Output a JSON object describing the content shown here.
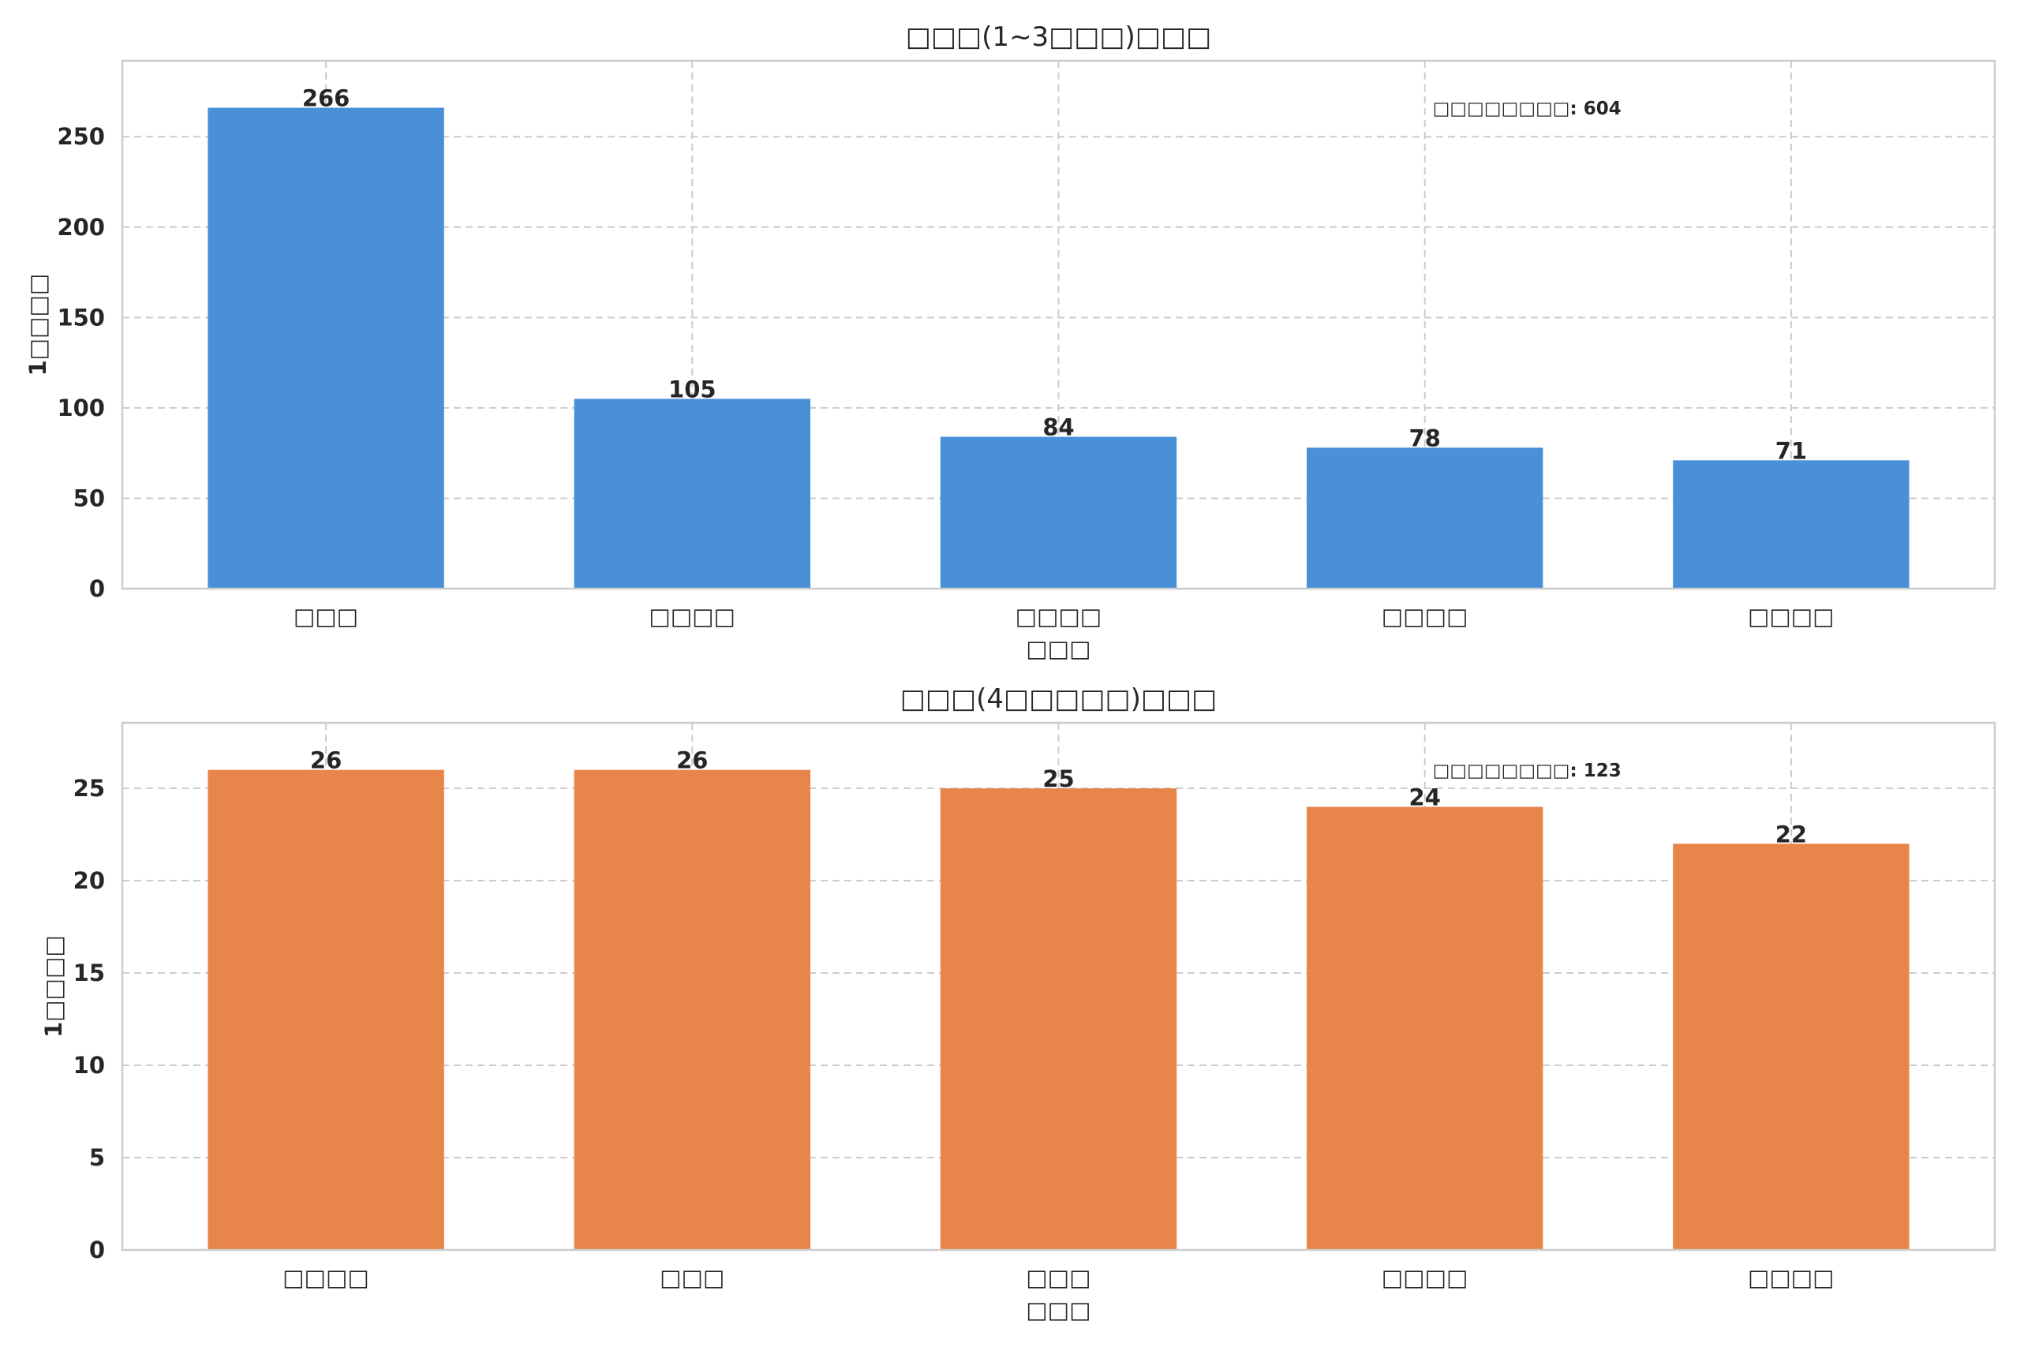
{
  "chart_data": [
    {
      "type": "bar",
      "title": "□□□(1~3□□□)□□□",
      "xlabel": "□□□",
      "ylabel": "1□□□□",
      "categories": [
        "□□□",
        "□□□□",
        "□□□□",
        "□□□□",
        "□□□□"
      ],
      "values": [
        266,
        105,
        84,
        78,
        71
      ],
      "ylim": [
        0,
        292
      ],
      "yticks": [
        0,
        50,
        100,
        150,
        200,
        250
      ],
      "color": "#4a90d9",
      "annotation": "□□□□□□□□: 604",
      "grid": true
    },
    {
      "type": "bar",
      "title": "□□□(4□□□□□)□□□",
      "xlabel": "□□□",
      "ylabel": "1□□□□",
      "categories": [
        "□□□□",
        "□□□",
        "□□□",
        "□□□□",
        "□□□□"
      ],
      "values": [
        26,
        26,
        25,
        24,
        22
      ],
      "ylim": [
        0,
        28.55
      ],
      "yticks": [
        0,
        5,
        10,
        15,
        20,
        25
      ],
      "color": "#e8854b",
      "annotation": "□□□□□□□□: 123",
      "grid": true
    }
  ]
}
